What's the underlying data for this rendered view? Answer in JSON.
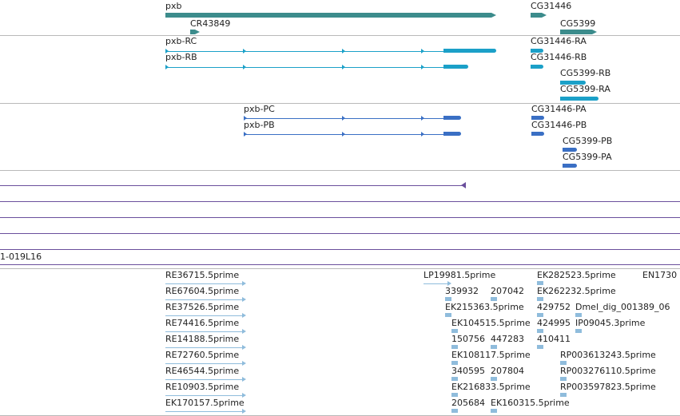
{
  "colors": {
    "gene": "#3c8c8c",
    "transcript_rna": "#1ba0c8",
    "transcript_protein": "#3a6fc4",
    "alignment": "#6a4f9c",
    "est": "#8fbcdc"
  },
  "genes": [
    {
      "label": "pxb"
    },
    {
      "label": "CR43849"
    },
    {
      "label": "CG31446"
    },
    {
      "label": "CG5399"
    }
  ],
  "rna_transcripts": [
    {
      "label": "pxb-RC"
    },
    {
      "label": "pxb-RB"
    },
    {
      "label": "CG31446-RA"
    },
    {
      "label": "CG31446-RB"
    },
    {
      "label": "CG5399-RB"
    },
    {
      "label": "CG5399-RA"
    }
  ],
  "proteins": [
    {
      "label": "pxb-PC"
    },
    {
      "label": "pxb-PB"
    },
    {
      "label": "CG31446-PA"
    },
    {
      "label": "CG31446-PB"
    },
    {
      "label": "CG5399-PB"
    },
    {
      "label": "CG5399-PA"
    }
  ],
  "clone_label": "1-019L16",
  "ests": [
    {
      "label": "RE36715.5prime"
    },
    {
      "label": "RE67604.5prime"
    },
    {
      "label": "RE37526.5prime"
    },
    {
      "label": "RE74416.5prime"
    },
    {
      "label": "RE14188.5prime"
    },
    {
      "label": "RE72760.5prime"
    },
    {
      "label": "RE46544.5prime"
    },
    {
      "label": "RE10903.5prime"
    },
    {
      "label": "EK170157.5prime"
    },
    {
      "label": "LP19981.5prime"
    },
    {
      "label": "339932"
    },
    {
      "label": "207042"
    },
    {
      "label": "EK215363.5prime"
    },
    {
      "label": "EK104515.5prime"
    },
    {
      "label": "150756"
    },
    {
      "label": "447283"
    },
    {
      "label": "EK108117.5prime"
    },
    {
      "label": "340595"
    },
    {
      "label": "207804"
    },
    {
      "label": "EK216833.5prime"
    },
    {
      "label": "205684"
    },
    {
      "label": "EK160315.5prime"
    },
    {
      "label": "EK282523.5prime"
    },
    {
      "label": "EK262232.5prime"
    },
    {
      "label": "429752"
    },
    {
      "label": "Dmel_dig_001389_06"
    },
    {
      "label": "424995"
    },
    {
      "label": "IP09045.3prime"
    },
    {
      "label": "410411"
    },
    {
      "label": "RP003613243.5prime"
    },
    {
      "label": "RP003276110.5prime"
    },
    {
      "label": "RP003597823.5prime"
    },
    {
      "label": "EN1730"
    }
  ]
}
